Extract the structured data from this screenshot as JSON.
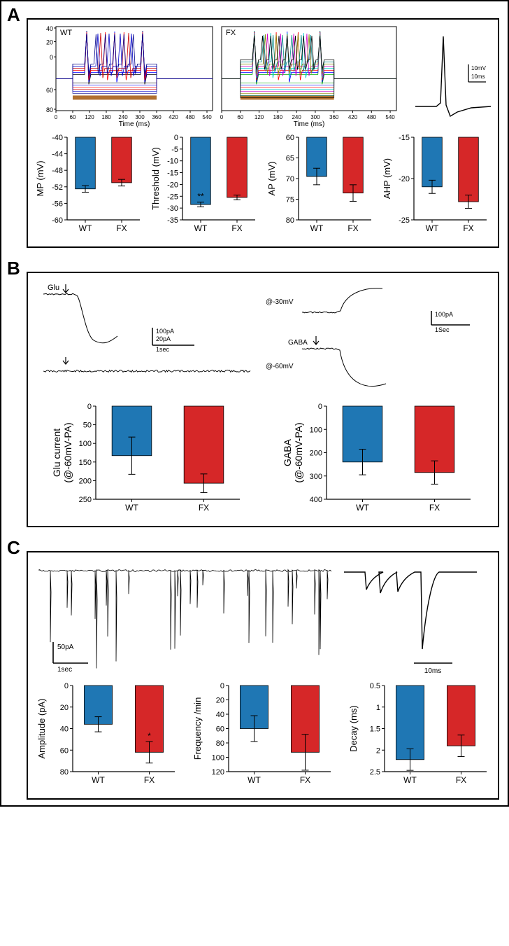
{
  "panelA": {
    "label": "A",
    "trace_plots": {
      "wt_label": "WT",
      "fx_label": "FX",
      "x_label": "Time (ms)",
      "x_ticks": [
        0,
        60,
        120,
        180,
        240,
        300,
        360,
        420,
        480,
        540
      ],
      "y_ticks_wt": [
        40,
        20,
        0,
        60,
        80
      ],
      "y_ticks_fx": [],
      "wt_colors": [
        "#000000",
        "#0000ff",
        "#ff0000",
        "#cc0000",
        "#0000cc",
        "#000088"
      ],
      "fx_colors": [
        "#00aa00",
        "#0000ff",
        "#ff0000",
        "#00cccc",
        "#cc00cc",
        "#888800",
        "#008888",
        "#000000"
      ],
      "spike_scale": {
        "v": "10mV",
        "t": "10ms"
      }
    },
    "bars": [
      {
        "ylabel": "MP (mV)",
        "ylim": [
          -40,
          -60
        ],
        "yticks": [
          -60,
          -56,
          -52,
          -48,
          -44,
          -40
        ],
        "WT": {
          "value": -52.5,
          "err": 0.8,
          "color": "#1f77b4"
        },
        "FX": {
          "value": -51.0,
          "err": 0.8,
          "color": "#d62728"
        },
        "sig": ""
      },
      {
        "ylabel": "Threshold (mV)",
        "ylim": [
          0,
          -35
        ],
        "yticks": [
          0,
          -5,
          -10,
          -15,
          -20,
          -25,
          -30,
          -35
        ],
        "WT": {
          "value": -28.5,
          "err": 1.0,
          "color": "#1f77b4"
        },
        "FX": {
          "value": -25.5,
          "err": 1.0,
          "color": "#d62728"
        },
        "sig": "**",
        "sig_on": "WT"
      },
      {
        "ylabel": "AP (mV)",
        "ylim": [
          60,
          80
        ],
        "yticks": [
          80,
          75,
          70,
          65,
          60
        ],
        "WT": {
          "value": 69.5,
          "err": 2.0,
          "color": "#1f77b4"
        },
        "FX": {
          "value": 73.5,
          "err": 2.0,
          "color": "#d62728"
        },
        "sig": ""
      },
      {
        "ylabel": "AHP (mV)",
        "ylim": [
          -15,
          -25
        ],
        "yticks": [
          -15,
          -20,
          -25
        ],
        "WT": {
          "value": -21.0,
          "err": 0.8,
          "color": "#1f77b4"
        },
        "FX": {
          "value": -22.8,
          "err": 0.8,
          "color": "#d62728"
        },
        "sig": ""
      }
    ],
    "categories": [
      "WT",
      "FX"
    ]
  },
  "panelB": {
    "label": "B",
    "left_trace": {
      "tag": "Glu",
      "scale_v": "100pA",
      "scale_v2": "20pA",
      "scale_t": "1sec"
    },
    "right_trace": {
      "tag1": "@-30mV",
      "tag2": "GABA",
      "tag3": "@-60mV",
      "scale_v": "100pA",
      "scale_t": "1Sec"
    },
    "bars": [
      {
        "ylabel1": "Glu current",
        "ylabel2": "(@-60mV-PA)",
        "ylim": [
          0,
          250
        ],
        "yticks": [
          0,
          50,
          100,
          150,
          200,
          250
        ],
        "WT": {
          "value": 133,
          "err": 50,
          "color": "#1f77b4"
        },
        "FX": {
          "value": 207,
          "err": 25,
          "color": "#d62728"
        }
      },
      {
        "ylabel1": "GABA",
        "ylabel2": "(@-60mV-PA)",
        "ylim": [
          0,
          400
        ],
        "yticks": [
          0,
          100,
          200,
          300,
          400
        ],
        "WT": {
          "value": 240,
          "err": 55,
          "color": "#1f77b4"
        },
        "FX": {
          "value": 285,
          "err": 50,
          "color": "#d62728"
        }
      }
    ],
    "categories": [
      "WT",
      "FX"
    ]
  },
  "panelC": {
    "label": "C",
    "trace_scale": {
      "v": "50pA",
      "t": "1sec"
    },
    "zoom_scale": "10ms",
    "bars": [
      {
        "ylabel": "Amplitude (pA)",
        "ylim": [
          0,
          80
        ],
        "yticks": [
          0,
          20,
          40,
          60,
          80
        ],
        "WT": {
          "value": 36,
          "err": 7,
          "color": "#1f77b4"
        },
        "FX": {
          "value": 62,
          "err": 10,
          "color": "#d62728"
        },
        "sig": "*",
        "sig_on": "FX"
      },
      {
        "ylabel": "Frequency /min",
        "ylim": [
          0,
          120
        ],
        "yticks": [
          0,
          20,
          40,
          60,
          80,
          100,
          120
        ],
        "WT": {
          "value": 60,
          "err": 18,
          "color": "#1f77b4"
        },
        "FX": {
          "value": 93,
          "err": 25,
          "color": "#d62728"
        },
        "sig": ""
      },
      {
        "ylabel": "Decay (ms)",
        "ylim": [
          0.5,
          2.5
        ],
        "yticks": [
          0.5,
          1.0,
          1.5,
          2.0,
          2.5
        ],
        "WT": {
          "value": 2.22,
          "err": 0.25,
          "color": "#1f77b4"
        },
        "FX": {
          "value": 1.9,
          "err": 0.25,
          "color": "#d62728"
        },
        "sig": ""
      }
    ],
    "categories": [
      "WT",
      "FX"
    ]
  },
  "style": {
    "bg": "#ffffff",
    "axis_color": "#000000",
    "tick_len": 4,
    "bar_width": 0.6,
    "error_cap": 5,
    "wt_color": "#1f77b4",
    "fx_color": "#d62728",
    "trace_color": "#000000"
  }
}
